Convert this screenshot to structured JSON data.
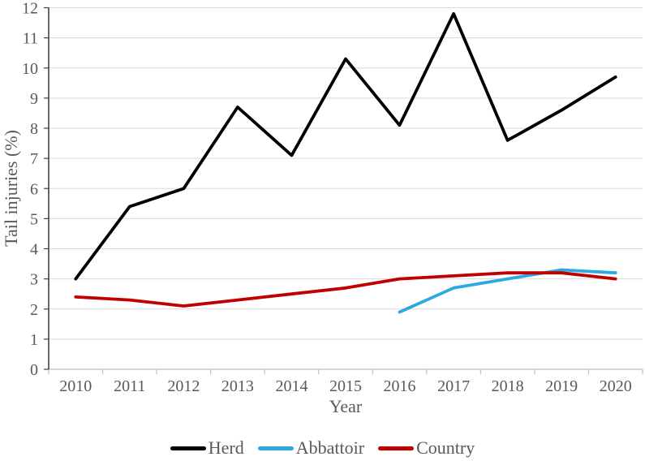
{
  "chart_data": {
    "type": "line",
    "title": "",
    "xlabel": "Year",
    "ylabel": "Tail injuries (%)",
    "categories": [
      "2010",
      "2011",
      "2012",
      "2013",
      "2014",
      "2015",
      "2016",
      "2017",
      "2018",
      "2019",
      "2020"
    ],
    "ylim": [
      0,
      12
    ],
    "ytick_step": 1,
    "grid": true,
    "legend_position": "bottom",
    "series": [
      {
        "name": "Herd",
        "color": "#000000",
        "values": [
          3.0,
          5.4,
          6.0,
          8.7,
          7.1,
          10.3,
          8.1,
          11.8,
          7.6,
          8.6,
          9.7
        ]
      },
      {
        "name": "Abbattoir",
        "color": "#2BAAE2",
        "values": [
          null,
          null,
          null,
          null,
          null,
          null,
          1.9,
          2.7,
          3.0,
          3.3,
          3.2
        ]
      },
      {
        "name": "Country",
        "color": "#C00000",
        "values": [
          2.4,
          2.3,
          2.1,
          2.3,
          2.5,
          2.7,
          3.0,
          3.1,
          3.2,
          3.2,
          3.0
        ]
      }
    ]
  },
  "style": {
    "background": "#FFFFFF",
    "gridline_color": "#D9D9D9",
    "x_axis_line_color": "#BFBFBF",
    "y_axis_line_color": "#333333",
    "y_tick_color": "#404040",
    "x_tick_color": "#BFBFBF",
    "label_color": "#595959",
    "line_width": 3.8
  }
}
